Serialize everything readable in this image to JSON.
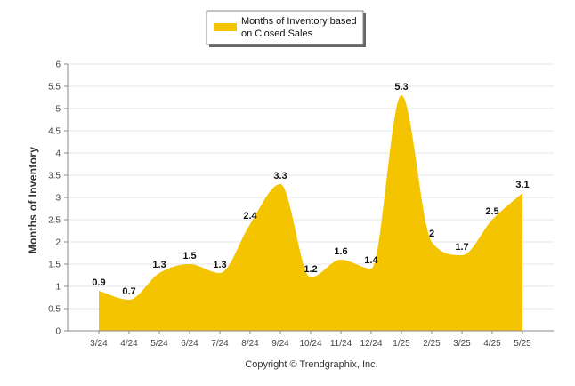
{
  "chart_data": {
    "type": "area",
    "categories": [
      "3/24",
      "4/24",
      "5/24",
      "6/24",
      "7/24",
      "8/24",
      "9/24",
      "10/24",
      "11/24",
      "12/24",
      "1/25",
      "2/25",
      "3/25",
      "4/25",
      "5/25"
    ],
    "series": [
      {
        "name": "Months of Inventory based on Closed Sales",
        "values": [
          0.9,
          0.7,
          1.3,
          1.5,
          1.3,
          2.4,
          3.3,
          1.2,
          1.6,
          1.4,
          5.3,
          2,
          1.7,
          2.5,
          3.1
        ],
        "labels": [
          "0.9",
          "0.7",
          "1.3",
          "1.5",
          "1.3",
          "2.4",
          "3.3",
          "1.2",
          "1.6",
          "1.4",
          "5.3",
          "2",
          "1.7",
          "2.5",
          "3.1"
        ],
        "color": "#F5C400"
      }
    ],
    "title": "",
    "xlabel": "",
    "ylabel": "Months of Inventory",
    "ylim": [
      0,
      6
    ],
    "yticks": [
      "0",
      "0.5",
      "1",
      "1.5",
      "2",
      "2.5",
      "3",
      "3.5",
      "4",
      "4.5",
      "5",
      "5.5",
      "6"
    ],
    "grid": true,
    "smooth": true,
    "legend_position": "top-center"
  },
  "legend": {
    "line1": "Months of Inventory based",
    "line2": "on Closed Sales"
  },
  "footer": {
    "copyright": "Copyright © Trendgraphix, Inc."
  },
  "colors": {
    "area": "#F5C400",
    "grid": "#e6e6e6"
  }
}
